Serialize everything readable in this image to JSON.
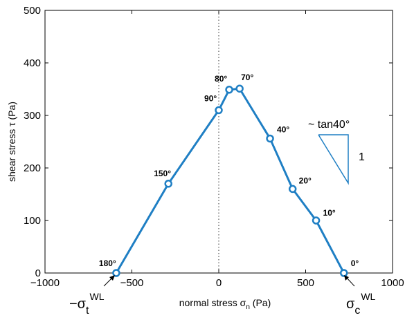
{
  "chart_data": {
    "type": "line",
    "title": "",
    "xlabel": "normal stress σn (Pa)",
    "ylabel": "shear stress τ (Pa)",
    "xlim": [
      -1000,
      1000
    ],
    "ylim": [
      0,
      500
    ],
    "xticks": [
      -1000,
      -500,
      0,
      500,
      1000
    ],
    "xtick_labels": [
      "−1000",
      "−500",
      "0",
      "500",
      "1000"
    ],
    "yticks": [
      0,
      100,
      200,
      300,
      400,
      500
    ],
    "ytick_labels": [
      "0",
      "100",
      "200",
      "300",
      "400",
      "500"
    ],
    "grid": false,
    "legend": "none",
    "color": "#1f7fc4",
    "reference_line": {
      "x": 0,
      "style": "dotted"
    },
    "points": [
      {
        "x": -590,
        "y": 0,
        "label": "180°"
      },
      {
        "x": -290,
        "y": 170,
        "label": "150°"
      },
      {
        "x": 0,
        "y": 310,
        "label": "90°"
      },
      {
        "x": 60,
        "y": 349,
        "label": "80°"
      },
      {
        "x": 120,
        "y": 351,
        "label": "70°"
      },
      {
        "x": 295,
        "y": 256,
        "label": "40°"
      },
      {
        "x": 425,
        "y": 160,
        "label": "20°"
      },
      {
        "x": 560,
        "y": 100,
        "label": "10°"
      },
      {
        "x": 720,
        "y": 0,
        "label": "0°"
      }
    ],
    "annotations": {
      "slope_label": "~ tan40°",
      "slope_run_label": "1",
      "sigma_t": {
        "base": "−σ",
        "sub": "t",
        "sup": "WL"
      },
      "sigma_c": {
        "base": "σ",
        "sub": "c",
        "sup": "WL"
      }
    }
  }
}
